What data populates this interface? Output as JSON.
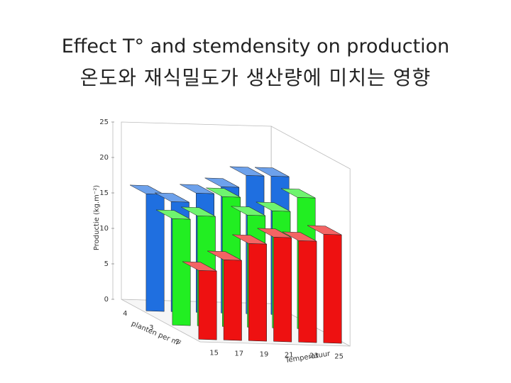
{
  "slide": {
    "title_line1": "Effect T° and stemdensity on production",
    "title_line2": "온도와 재식밀도가 생산량에 미치는 영향"
  },
  "chart_data": {
    "type": "bar3d",
    "title": "",
    "zlabel": "Productie (kg.m⁻²)",
    "xlabel": "Temperatuur",
    "ylabel": "planten per m²",
    "zlim": [
      0,
      25
    ],
    "z_ticks": [
      "0",
      "5",
      "10",
      "15",
      "20",
      "25"
    ],
    "temperatures": [
      15,
      17,
      19,
      21,
      23,
      25
    ],
    "x_ticks": [
      "15",
      "17",
      "19",
      "21",
      "23",
      "25"
    ],
    "densities": [
      4,
      3,
      2
    ],
    "y_ticks": [
      "4",
      "3",
      "2"
    ],
    "series": [
      {
        "density": 4,
        "color": "#1f6fe0",
        "values": [
          16.5,
          15.5,
          16.8,
          17.8,
          19.5,
          19.5
        ]
      },
      {
        "density": 3,
        "color": "#22ee22",
        "values": [
          15.0,
          15.5,
          18.3,
          15.8,
          16.5,
          18.5
        ]
      },
      {
        "density": 2,
        "color": "#ee1111",
        "values": [
          9.7,
          11.3,
          13.7,
          14.7,
          14.3,
          15.3
        ]
      }
    ]
  }
}
